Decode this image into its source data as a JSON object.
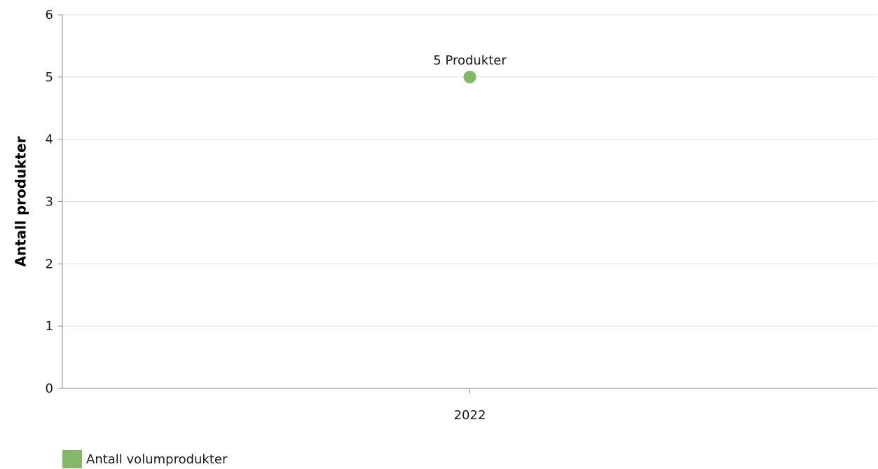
{
  "chart_data": {
    "type": "scatter",
    "title": "",
    "xlabel": "",
    "ylabel": "Antall produkter",
    "categories": [
      "2022"
    ],
    "ylim": [
      0,
      6
    ],
    "yticks": [
      0,
      1,
      2,
      3,
      4,
      5,
      6
    ],
    "grid": true,
    "legend_position": "bottom-left",
    "series": [
      {
        "name": "Antall volumprodukter",
        "color": "#82b866",
        "values": [
          5
        ],
        "data_labels": [
          "5 Produkter"
        ]
      }
    ]
  }
}
